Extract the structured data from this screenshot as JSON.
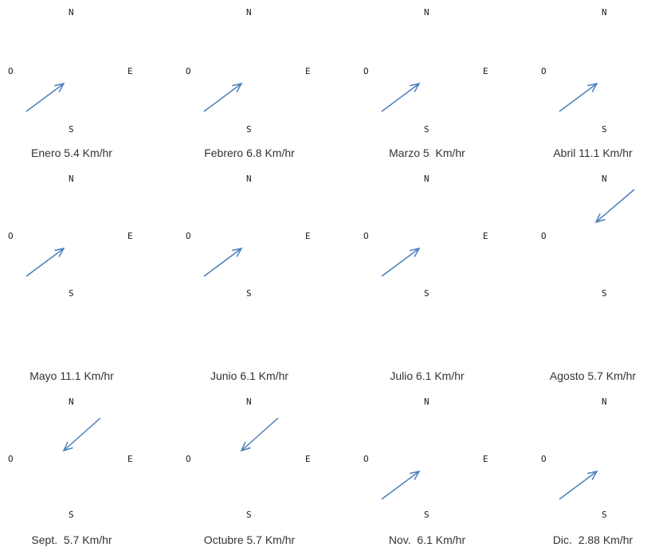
{
  "compass": {
    "north": "N",
    "south": "S",
    "east": "E",
    "west": "O"
  },
  "arrow_color": "#4a7ebb",
  "months": [
    {
      "label": "Enero 5.4 Km/hr",
      "direction": "toward-northeast"
    },
    {
      "label": "Febrero 6.8 Km/hr",
      "direction": "toward-northeast"
    },
    {
      "label": "Marzo 5  Km/hr",
      "direction": "toward-northeast"
    },
    {
      "label": "Abril 11.1 Km/hr",
      "direction": "toward-northeast"
    },
    {
      "label": "Mayo 11.1 Km/hr",
      "direction": "toward-northeast"
    },
    {
      "label": "Junio 6.1 Km/hr",
      "direction": "toward-northeast"
    },
    {
      "label": "Julio 6.1 Km/hr",
      "direction": "toward-northeast"
    },
    {
      "label": "Agosto 5.7 Km/hr",
      "direction": "toward-southwest"
    },
    {
      "label": "Sept.  5.7 Km/hr",
      "direction": "toward-southwest"
    },
    {
      "label": "Octubre 5.7 Km/hr",
      "direction": "toward-southwest"
    },
    {
      "label": "Nov.  6.1 Km/hr",
      "direction": "toward-northeast"
    },
    {
      "label": "Dic.  2.88 Km/hr",
      "direction": "toward-northeast"
    }
  ]
}
